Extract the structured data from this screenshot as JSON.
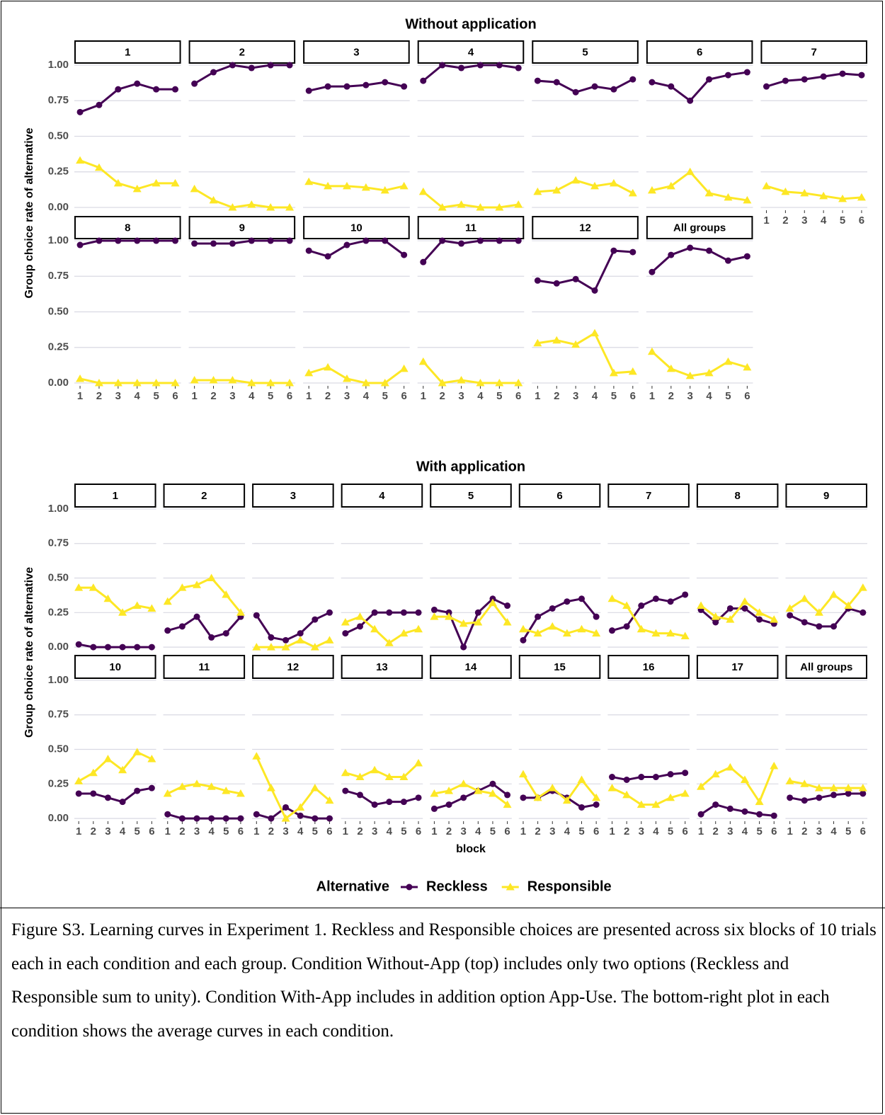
{
  "chart_data": {
    "type": "line",
    "y_label": "Group choice rate of alternative",
    "x_label": "block",
    "legend_title": "Alternative",
    "x": [
      1,
      2,
      3,
      4,
      5,
      6
    ],
    "xlim": [
      0.7,
      6.3
    ],
    "ylim": [
      -0.02,
      1.01
    ],
    "yticks": [
      {
        "value": 0,
        "label": "0.00"
      },
      {
        "value": 0.25,
        "label": "0.25"
      },
      {
        "value": 0.5,
        "label": "0.50"
      },
      {
        "value": 0.75,
        "label": "0.75"
      },
      {
        "value": 1,
        "label": "1.00"
      }
    ],
    "grid": true,
    "series": [
      {
        "name": "Reckless",
        "color": "#440154",
        "marker": "circle"
      },
      {
        "name": "Responsible",
        "color": "#fde725",
        "marker": "triangle"
      }
    ],
    "conditions": [
      {
        "title": "Without application",
        "panels": [
          {
            "title": "1",
            "values": [
              [
                0.67,
                0.72,
                0.83,
                0.87,
                0.83,
                0.83
              ],
              [
                0.33,
                0.28,
                0.17,
                0.13,
                0.17,
                0.17
              ]
            ]
          },
          {
            "title": "2",
            "values": [
              [
                0.87,
                0.95,
                1.0,
                0.98,
                1.0,
                1.0
              ],
              [
                0.13,
                0.05,
                0,
                0.02,
                0,
                0
              ]
            ]
          },
          {
            "title": "3",
            "values": [
              [
                0.82,
                0.85,
                0.85,
                0.86,
                0.88,
                0.85
              ],
              [
                0.18,
                0.15,
                0.15,
                0.14,
                0.12,
                0.15
              ]
            ]
          },
          {
            "title": "4",
            "values": [
              [
                0.89,
                1.0,
                0.98,
                1.0,
                1.0,
                0.98
              ],
              [
                0.11,
                0,
                0.02,
                0,
                0,
                0.02
              ]
            ]
          },
          {
            "title": "5",
            "values": [
              [
                0.89,
                0.88,
                0.81,
                0.85,
                0.83,
                0.9
              ],
              [
                0.11,
                0.12,
                0.19,
                0.15,
                0.17,
                0.1
              ]
            ]
          },
          {
            "title": "6",
            "values": [
              [
                0.88,
                0.85,
                0.75,
                0.9,
                0.93,
                0.95
              ],
              [
                0.12,
                0.15,
                0.25,
                0.1,
                0.07,
                0.05
              ]
            ]
          },
          {
            "title": "7",
            "values": [
              [
                0.85,
                0.89,
                0.9,
                0.92,
                0.94,
                0.93
              ],
              [
                0.15,
                0.11,
                0.1,
                0.08,
                0.06,
                0.07
              ]
            ]
          },
          {
            "title": "8",
            "values": [
              [
                0.97,
                1,
                1,
                1,
                1,
                1
              ],
              [
                0.03,
                0,
                0,
                0,
                0,
                0
              ]
            ]
          },
          {
            "title": "9",
            "values": [
              [
                0.98,
                0.98,
                0.98,
                1,
                1,
                1
              ],
              [
                0.02,
                0.02,
                0.02,
                0,
                0,
                0
              ]
            ]
          },
          {
            "title": "10",
            "values": [
              [
                0.93,
                0.89,
                0.97,
                1,
                1,
                0.9
              ],
              [
                0.07,
                0.11,
                0.03,
                0,
                0,
                0.1
              ]
            ]
          },
          {
            "title": "11",
            "values": [
              [
                0.85,
                1,
                0.98,
                1,
                1,
                1
              ],
              [
                0.15,
                0,
                0.02,
                0,
                0,
                0
              ]
            ]
          },
          {
            "title": "12",
            "values": [
              [
                0.72,
                0.7,
                0.73,
                0.65,
                0.93,
                0.92
              ],
              [
                0.28,
                0.3,
                0.27,
                0.35,
                0.07,
                0.08
              ]
            ]
          },
          {
            "title": "All groups",
            "values": [
              [
                0.78,
                0.9,
                0.95,
                0.93,
                0.86,
                0.89
              ],
              [
                0.22,
                0.1,
                0.05,
                0.07,
                0.15,
                0.11
              ]
            ]
          }
        ]
      },
      {
        "title": "With application",
        "panels": [
          {
            "title": "1",
            "values": [
              [
                0.02,
                0,
                0,
                0,
                0,
                0
              ],
              [
                0.43,
                0.43,
                0.35,
                0.25,
                0.3,
                0.28
              ]
            ]
          },
          {
            "title": "2",
            "values": [
              [
                0.12,
                0.15,
                0.22,
                0.07,
                0.1,
                0.22
              ],
              [
                0.33,
                0.43,
                0.45,
                0.5,
                0.38,
                0.25
              ]
            ]
          },
          {
            "title": "3",
            "values": [
              [
                0.23,
                0.07,
                0.05,
                0.1,
                0.2,
                0.25
              ],
              [
                0,
                0,
                0,
                0.05,
                0,
                0.05
              ]
            ]
          },
          {
            "title": "4",
            "values": [
              [
                0.1,
                0.15,
                0.25,
                0.25,
                0.25,
                0.25
              ],
              [
                0.18,
                0.22,
                0.13,
                0.03,
                0.1,
                0.13
              ]
            ]
          },
          {
            "title": "5",
            "values": [
              [
                0.27,
                0.25,
                0,
                0.25,
                0.35,
                0.3
              ],
              [
                0.22,
                0.22,
                0.17,
                0.18,
                0.32,
                0.18
              ]
            ]
          },
          {
            "title": "6",
            "values": [
              [
                0.05,
                0.22,
                0.28,
                0.33,
                0.35,
                0.22
              ],
              [
                0.13,
                0.1,
                0.15,
                0.1,
                0.13,
                0.1
              ]
            ]
          },
          {
            "title": "7",
            "values": [
              [
                0.12,
                0.15,
                0.3,
                0.35,
                0.33,
                0.38
              ],
              [
                0.35,
                0.3,
                0.13,
                0.1,
                0.1,
                0.08
              ]
            ]
          },
          {
            "title": "8",
            "values": [
              [
                0.27,
                0.18,
                0.28,
                0.28,
                0.2,
                0.17
              ],
              [
                0.3,
                0.22,
                0.2,
                0.33,
                0.25,
                0.2
              ]
            ]
          },
          {
            "title": "9",
            "values": [
              [
                0.23,
                0.18,
                0.15,
                0.15,
                0.28,
                0.25
              ],
              [
                0.28,
                0.35,
                0.25,
                0.38,
                0.3,
                0.43
              ]
            ]
          },
          {
            "title": "10",
            "values": [
              [
                0.18,
                0.18,
                0.15,
                0.12,
                0.2,
                0.22
              ],
              [
                0.27,
                0.33,
                0.43,
                0.35,
                0.48,
                0.43
              ]
            ]
          },
          {
            "title": "11",
            "values": [
              [
                0.03,
                0,
                0,
                0,
                0,
                0
              ],
              [
                0.18,
                0.23,
                0.25,
                0.23,
                0.2,
                0.18
              ]
            ]
          },
          {
            "title": "12",
            "values": [
              [
                0.03,
                0,
                0.08,
                0.02,
                0,
                0
              ],
              [
                0.45,
                0.22,
                0,
                0.08,
                0.22,
                0.13
              ]
            ]
          },
          {
            "title": "13",
            "values": [
              [
                0.2,
                0.17,
                0.1,
                0.12,
                0.12,
                0.15
              ],
              [
                0.33,
                0.3,
                0.35,
                0.3,
                0.3,
                0.4
              ]
            ]
          },
          {
            "title": "14",
            "values": [
              [
                0.07,
                0.1,
                0.15,
                0.2,
                0.25,
                0.17
              ],
              [
                0.18,
                0.2,
                0.25,
                0.2,
                0.18,
                0.1
              ]
            ]
          },
          {
            "title": "15",
            "values": [
              [
                0.15,
                0.15,
                0.2,
                0.15,
                0.08,
                0.1
              ],
              [
                0.32,
                0.15,
                0.22,
                0.13,
                0.28,
                0.15
              ]
            ]
          },
          {
            "title": "16",
            "values": [
              [
                0.3,
                0.28,
                0.3,
                0.3,
                0.32,
                0.33
              ],
              [
                0.22,
                0.17,
                0.1,
                0.1,
                0.15,
                0.18
              ]
            ]
          },
          {
            "title": "17",
            "values": [
              [
                0.03,
                0.1,
                0.07,
                0.05,
                0.03,
                0.02
              ],
              [
                0.23,
                0.32,
                0.37,
                0.28,
                0.12,
                0.38
              ]
            ]
          },
          {
            "title": "All groups",
            "values": [
              [
                0.15,
                0.13,
                0.15,
                0.17,
                0.18,
                0.18
              ],
              [
                0.27,
                0.25,
                0.22,
                0.22,
                0.22,
                0.22
              ]
            ]
          }
        ]
      }
    ]
  },
  "caption": "Figure S3. Learning curves in Experiment 1. Reckless and Responsible choices are presented across six blocks of 10 trials each in each condition and each group. Condition Without-App (top) includes only two options (Reckless and Responsible sum to unity). Condition With-App includes in addition option App-Use. The bottom-right plot in each condition shows the average curves in each condition."
}
